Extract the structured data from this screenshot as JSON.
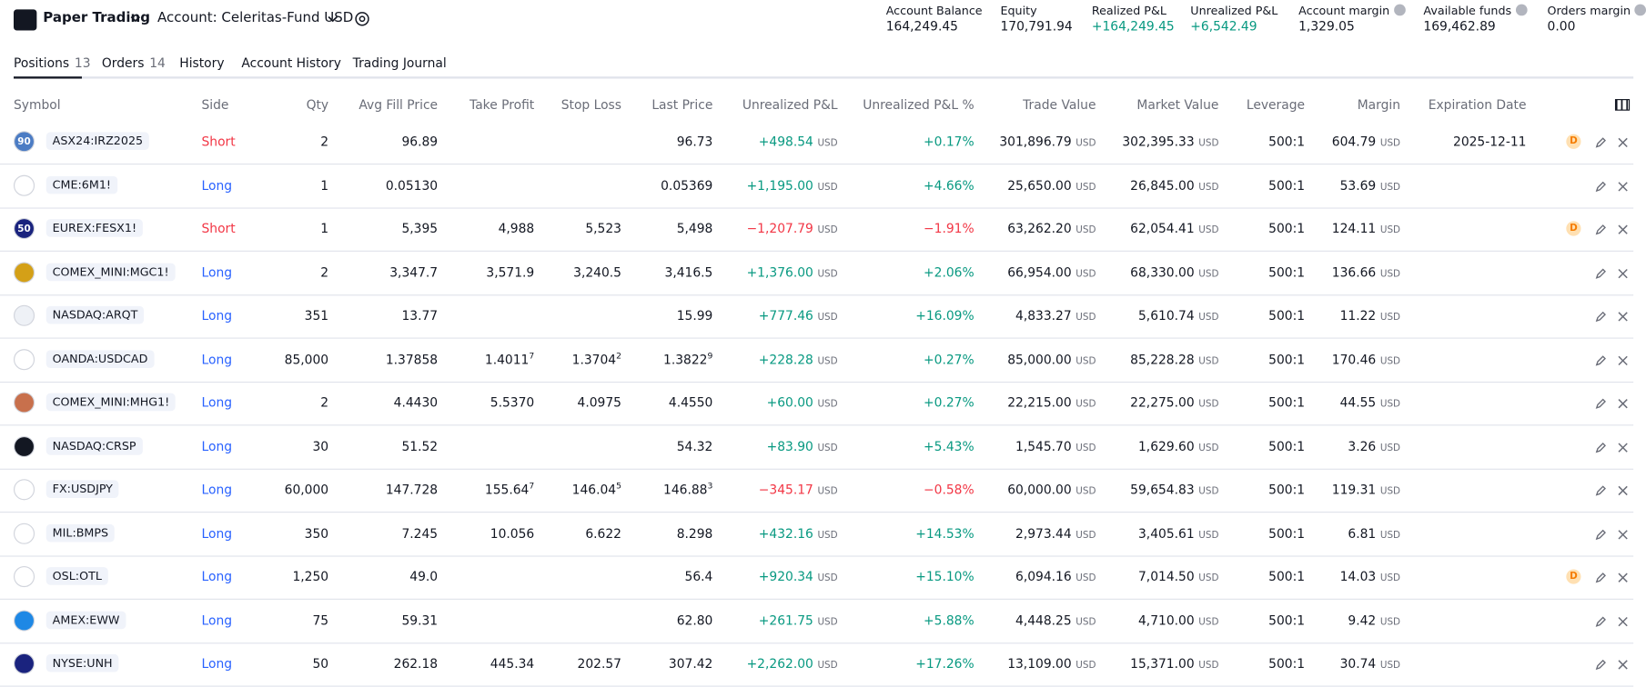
{
  "header": {
    "product": "Paper Trading",
    "account": "Account: Celeritas-Fund USD",
    "summary": [
      {
        "label": "Account Balance",
        "value": "164,249.45"
      },
      {
        "label": "Equity",
        "value": "170,791.94"
      },
      {
        "label": "Realized P&L",
        "value": "+164,249.45",
        "color": "#089981"
      },
      {
        "label": "Unrealized P&L",
        "value": "+6,542.49",
        "color": "#089981"
      },
      {
        "label": "Account margin",
        "value": "1,329.05",
        "info": true
      },
      {
        "label": "Available funds",
        "value": "169,462.89",
        "info": true
      },
      {
        "label": "Orders margin",
        "value": "0.00",
        "info": true
      }
    ]
  },
  "tabs": [
    {
      "label": "Positions",
      "count": "13"
    },
    {
      "label": "Orders",
      "count": "14"
    },
    {
      "label": "History"
    },
    {
      "label": "Account History"
    },
    {
      "label": "Trading Journal"
    }
  ],
  "table": {
    "columns": [
      "Symbol",
      "Side",
      "Qty",
      "Avg Fill Price",
      "Take Profit",
      "Stop Loss",
      "Last Price",
      "Unrealized P&L",
      "Unrealized P&L %",
      "Trade Value",
      "Market Value",
      "Leverage",
      "Margin",
      "Expiration Date"
    ],
    "currency": "USD",
    "rows": [
      {
        "icon_text": "90",
        "symbol": "ASX24:IRZ2025",
        "side": "Short",
        "side_color": "#f23645",
        "qty": "2",
        "avg_fill": "96.89",
        "last": "96.73",
        "upnl": "+498.54",
        "pnl_color": "#089981",
        "upnl_pct": "+0.17%",
        "trade_value": "301,896.79",
        "market_value": "302,395.33",
        "leverage": "500:1",
        "margin": "604.79",
        "expiration": "2025-12-11",
        "badge": "D"
      },
      {
        "symbol": "CME:6M1!",
        "side": "Long",
        "side_color": "#2962ff",
        "qty": "1",
        "avg_fill": "0.05130",
        "last": "0.05369",
        "upnl": "+1,195.00",
        "pnl_color": "#089981",
        "upnl_pct": "+4.66%",
        "trade_value": "25,650.00",
        "market_value": "26,845.00",
        "leverage": "500:1",
        "margin": "53.69"
      },
      {
        "icon_text": "50",
        "symbol": "EUREX:FESX1!",
        "side": "Short",
        "side_color": "#f23645",
        "qty": "1",
        "avg_fill": "5,395",
        "take_profit": "4,988",
        "stop_loss": "5,523",
        "last": "5,498",
        "upnl": "−1,207.79",
        "pnl_color": "#f23645",
        "upnl_pct": "−1.91%",
        "trade_value": "63,262.20",
        "market_value": "62,054.41",
        "leverage": "500:1",
        "margin": "124.11",
        "badge": "D"
      },
      {
        "symbol": "COMEX_MINI:MGC1!",
        "side": "Long",
        "side_color": "#2962ff",
        "qty": "2",
        "avg_fill": "3,347.7",
        "take_profit": "3,571.9",
        "stop_loss": "3,240.5",
        "last": "3,416.5",
        "upnl": "+1,376.00",
        "pnl_color": "#089981",
        "upnl_pct": "+2.06%",
        "trade_value": "66,954.00",
        "market_value": "68,330.00",
        "leverage": "500:1",
        "margin": "136.66"
      },
      {
        "symbol": "NASDAQ:ARQT",
        "side": "Long",
        "side_color": "#2962ff",
        "qty": "351",
        "avg_fill": "13.77",
        "last": "15.99",
        "upnl": "+777.46",
        "pnl_color": "#089981",
        "upnl_pct": "+16.09%",
        "trade_value": "4,833.27",
        "market_value": "5,610.74",
        "leverage": "500:1",
        "margin": "11.22"
      },
      {
        "symbol": "OANDA:USDCAD",
        "side": "Long",
        "side_color": "#2962ff",
        "qty": "85,000",
        "avg_fill": "1.37858",
        "take_profit": {
          "main": "1.4011",
          "sup": "7"
        },
        "stop_loss": {
          "main": "1.3704",
          "sup": "2"
        },
        "last": {
          "main": "1.3822",
          "sup": "9"
        },
        "upnl": "+228.28",
        "pnl_color": "#089981",
        "upnl_pct": "+0.27%",
        "trade_value": "85,000.00",
        "market_value": "85,228.28",
        "leverage": "500:1",
        "margin": "170.46"
      },
      {
        "symbol": "COMEX_MINI:MHG1!",
        "side": "Long",
        "side_color": "#2962ff",
        "qty": "2",
        "avg_fill": "4.4430",
        "take_profit": "5.5370",
        "stop_loss": "4.0975",
        "last": "4.4550",
        "upnl": "+60.00",
        "pnl_color": "#089981",
        "upnl_pct": "+0.27%",
        "trade_value": "22,215.00",
        "market_value": "22,275.00",
        "leverage": "500:1",
        "margin": "44.55"
      },
      {
        "symbol": "NASDAQ:CRSP",
        "side": "Long",
        "side_color": "#2962ff",
        "qty": "30",
        "avg_fill": "51.52",
        "last": "54.32",
        "upnl": "+83.90",
        "pnl_color": "#089981",
        "upnl_pct": "+5.43%",
        "trade_value": "1,545.70",
        "market_value": "1,629.60",
        "leverage": "500:1",
        "margin": "3.26"
      },
      {
        "symbol": "FX:USDJPY",
        "side": "Long",
        "side_color": "#2962ff",
        "qty": "60,000",
        "avg_fill": "147.728",
        "take_profit": {
          "main": "155.64",
          "sup": "7"
        },
        "stop_loss": {
          "main": "146.04",
          "sup": "5"
        },
        "last": {
          "main": "146.88",
          "sup": "3"
        },
        "upnl": "−345.17",
        "pnl_color": "#f23645",
        "upnl_pct": "−0.58%",
        "trade_value": "60,000.00",
        "market_value": "59,654.83",
        "leverage": "500:1",
        "margin": "119.31"
      },
      {
        "symbol": "MIL:BMPS",
        "side": "Long",
        "side_color": "#2962ff",
        "qty": "350",
        "avg_fill": "7.245",
        "take_profit": "10.056",
        "stop_loss": "6.622",
        "last": "8.298",
        "upnl": "+432.16",
        "pnl_color": "#089981",
        "upnl_pct": "+14.53%",
        "trade_value": "2,973.44",
        "market_value": "3,405.61",
        "leverage": "500:1",
        "margin": "6.81"
      },
      {
        "symbol": "OSL:OTL",
        "side": "Long",
        "side_color": "#2962ff",
        "qty": "1,250",
        "avg_fill": "49.0",
        "last": "56.4",
        "upnl": "+920.34",
        "pnl_color": "#089981",
        "upnl_pct": "+15.10%",
        "trade_value": "6,094.16",
        "market_value": "7,014.50",
        "leverage": "500:1",
        "margin": "14.03",
        "badge": "D"
      },
      {
        "symbol": "AMEX:EWW",
        "side": "Long",
        "side_color": "#2962ff",
        "qty": "75",
        "avg_fill": "59.31",
        "last": "62.80",
        "upnl": "+261.75",
        "pnl_color": "#089981",
        "upnl_pct": "+5.88%",
        "trade_value": "4,448.25",
        "market_value": "4,710.00",
        "leverage": "500:1",
        "margin": "9.42"
      },
      {
        "symbol": "NYSE:UNH",
        "side": "Long",
        "side_color": "#2962ff",
        "qty": "50",
        "avg_fill": "262.18",
        "take_profit": "445.34",
        "stop_loss": "202.57",
        "last": "307.42",
        "upnl": "+2,262.00",
        "pnl_color": "#089981",
        "upnl_pct": "+17.26%",
        "trade_value": "13,109.00",
        "market_value": "15,371.00",
        "leverage": "500:1",
        "margin": "30.74"
      }
    ]
  }
}
